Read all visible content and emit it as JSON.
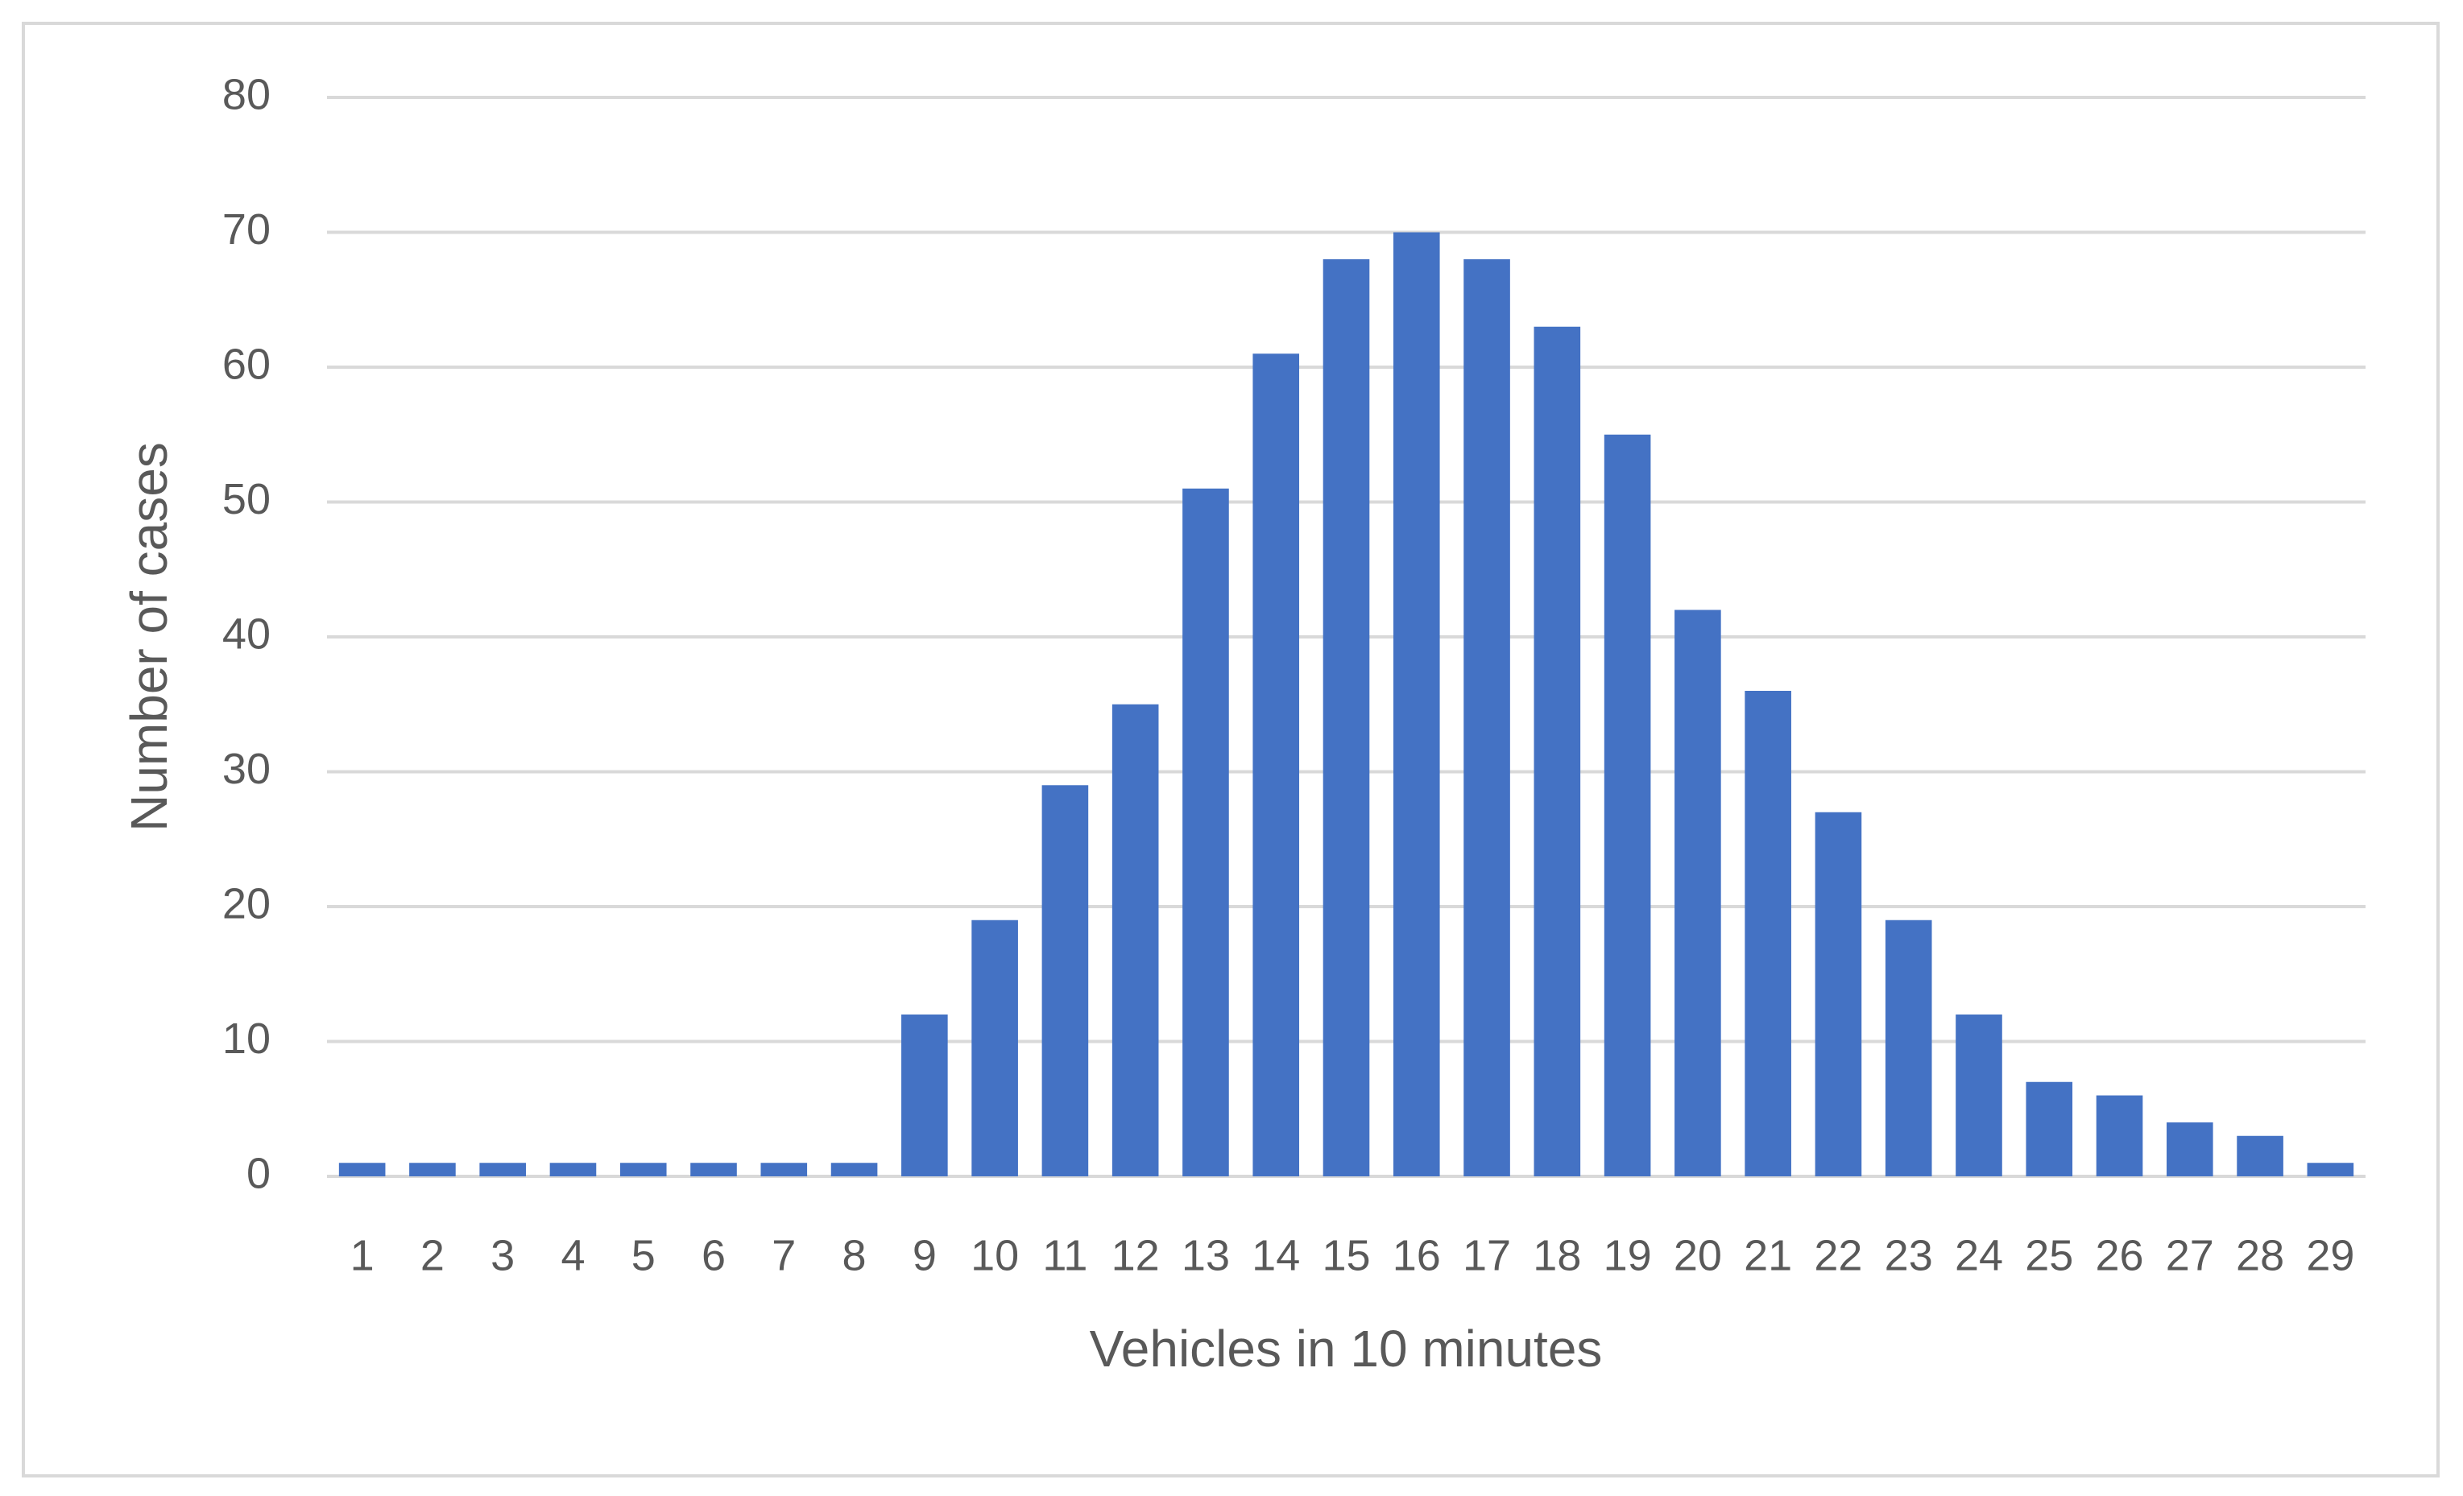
{
  "chart_data": {
    "type": "bar",
    "x_label": "Vehicles in 10 minutes",
    "y_label": "Number of cases",
    "categories": [
      "1",
      "2",
      "3",
      "4",
      "5",
      "6",
      "7",
      "8",
      "9",
      "10",
      "11",
      "12",
      "13",
      "14",
      "15",
      "16",
      "17",
      "18",
      "19",
      "20",
      "21",
      "22",
      "23",
      "24",
      "25",
      "26",
      "27",
      "28",
      "29"
    ],
    "values": [
      1,
      1,
      1,
      1,
      1,
      1,
      1,
      1,
      12,
      19,
      29,
      35,
      51,
      61,
      68,
      70,
      68,
      63,
      55,
      42,
      36,
      27,
      19,
      12,
      7,
      6,
      4,
      3,
      1
    ],
    "color": "#4472c4",
    "ylim": [
      0,
      80
    ],
    "yticks": [
      0,
      10,
      20,
      30,
      40,
      50,
      60,
      70,
      80
    ],
    "grid": true
  }
}
